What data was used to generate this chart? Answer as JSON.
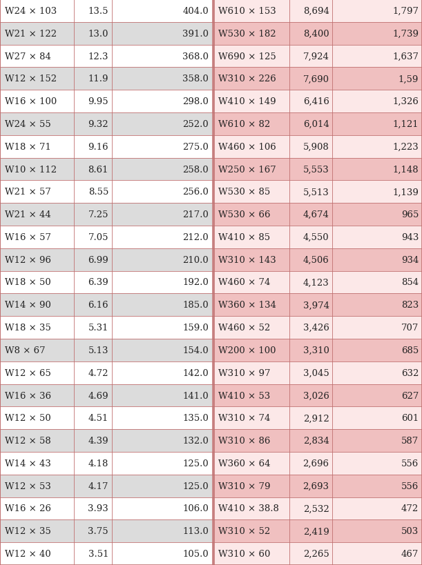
{
  "left_data": [
    [
      "W24 × 103",
      "13.5",
      "404.0"
    ],
    [
      "W21 × 122",
      "13.0",
      "391.0"
    ],
    [
      "W27 × 84",
      "12.3",
      "368.0"
    ],
    [
      "W12 × 152",
      "11.9",
      "358.0"
    ],
    [
      "W16 × 100",
      "9.95",
      "298.0"
    ],
    [
      "W24 × 55",
      "9.32",
      "252.0"
    ],
    [
      "W18 × 71",
      "9.16",
      "275.0"
    ],
    [
      "W10 × 112",
      "8.61",
      "258.0"
    ],
    [
      "W21 × 57",
      "8.55",
      "256.0"
    ],
    [
      "W21 × 44",
      "7.25",
      "217.0"
    ],
    [
      "W16 × 57",
      "7.05",
      "212.0"
    ],
    [
      "W12 × 96",
      "6.99",
      "210.0"
    ],
    [
      "W18 × 50",
      "6.39",
      "192.0"
    ],
    [
      "W14 × 90",
      "6.16",
      "185.0"
    ],
    [
      "W18 × 35",
      "5.31",
      "159.0"
    ],
    [
      "W8 × 67",
      "5.13",
      "154.0"
    ],
    [
      "W12 × 65",
      "4.72",
      "142.0"
    ],
    [
      "W16 × 36",
      "4.69",
      "141.0"
    ],
    [
      "W12 × 50",
      "4.51",
      "135.0"
    ],
    [
      "W12 × 58",
      "4.39",
      "132.0"
    ],
    [
      "W14 × 43",
      "4.18",
      "125.0"
    ],
    [
      "W12 × 53",
      "4.17",
      "125.0"
    ],
    [
      "W16 × 26",
      "3.93",
      "106.0"
    ],
    [
      "W12 × 35",
      "3.75",
      "113.0"
    ],
    [
      "W12 × 40",
      "3.51",
      "105.0"
    ]
  ],
  "right_data": [
    [
      "W610 × 153",
      "8,694",
      "1,797"
    ],
    [
      "W530 × 182",
      "8,400",
      "1,739"
    ],
    [
      "W690 × 125",
      "7,924",
      "1,637"
    ],
    [
      "W310 × 226",
      "7,690",
      "1,59"
    ],
    [
      "W410 × 149",
      "6,416",
      "1,326"
    ],
    [
      "W610 × 82",
      "6,014",
      "1,121"
    ],
    [
      "W460 × 106",
      "5,908",
      "1,223"
    ],
    [
      "W250 × 167",
      "5,553",
      "1,148"
    ],
    [
      "W530 × 85",
      "5,513",
      "1,139"
    ],
    [
      "W530 × 66",
      "4,674",
      "965"
    ],
    [
      "W410 × 85",
      "4,550",
      "943"
    ],
    [
      "W310 × 143",
      "4,506",
      "934"
    ],
    [
      "W460 × 74",
      "4,123",
      "854"
    ],
    [
      "W360 × 134",
      "3,974",
      "823"
    ],
    [
      "W460 × 52",
      "3,426",
      "707"
    ],
    [
      "W200 × 100",
      "3,310",
      "685"
    ],
    [
      "W310 × 97",
      "3,045",
      "632"
    ],
    [
      "W410 × 53",
      "3,026",
      "627"
    ],
    [
      "W310 × 74",
      "2,912",
      "601"
    ],
    [
      "W310 × 86",
      "2,834",
      "587"
    ],
    [
      "W360 × 64",
      "2,696",
      "556"
    ],
    [
      "W310 × 79",
      "2,693",
      "556"
    ],
    [
      "W410 × 38.8",
      "2,532",
      "472"
    ],
    [
      "W310 × 52",
      "2,419",
      "503"
    ],
    [
      "W310 × 60",
      "2,265",
      "467"
    ]
  ],
  "bg_white": "#ffffff",
  "bg_gray": "#dcdcdc",
  "bg_pink_light": "#fce8e8",
  "bg_pink_dark": "#f0c0c0",
  "border_color": "#c07070",
  "text_color": "#222222",
  "font_size": 9.5
}
